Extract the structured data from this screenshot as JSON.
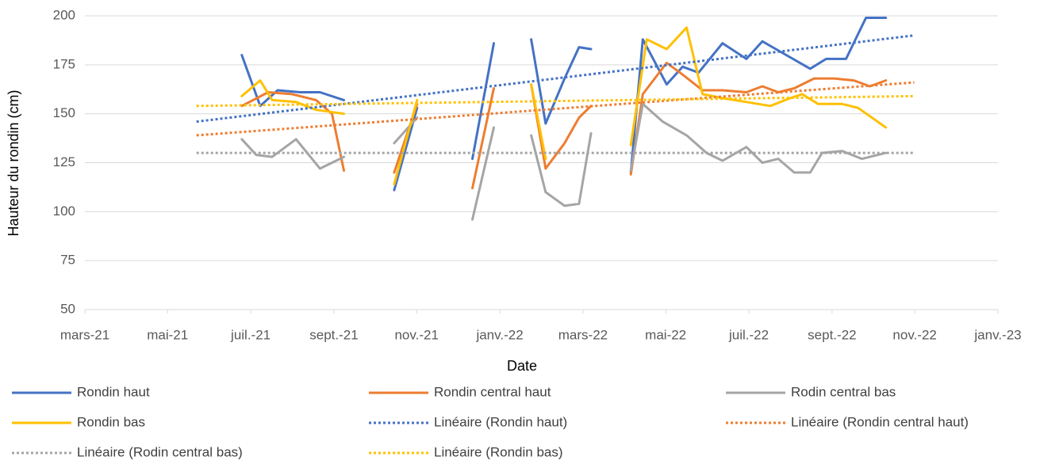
{
  "chart_data": {
    "type": "line",
    "x_label": "Date",
    "y_label": "Hauteur du rondin (cm)",
    "xlim": [
      2021.167,
      2023.0
    ],
    "xticks": [
      {
        "value": 2021.167,
        "label": "mars-21"
      },
      {
        "value": 2021.333,
        "label": "mai-21"
      },
      {
        "value": 2021.5,
        "label": "juil.-21"
      },
      {
        "value": 2021.667,
        "label": "sept.-21"
      },
      {
        "value": 2021.833,
        "label": "nov.-21"
      },
      {
        "value": 2022.0,
        "label": "janv.-22"
      },
      {
        "value": 2022.167,
        "label": "mars-22"
      },
      {
        "value": 2022.333,
        "label": "mai-22"
      },
      {
        "value": 2022.5,
        "label": "juil.-22"
      },
      {
        "value": 2022.667,
        "label": "sept.-22"
      },
      {
        "value": 2022.833,
        "label": "nov.-22"
      },
      {
        "value": 2023.0,
        "label": "janv.-23"
      }
    ],
    "ylim": [
      50,
      200
    ],
    "yticks": [
      50,
      75,
      100,
      125,
      150,
      175,
      200
    ],
    "grid": true,
    "legend": "bottom",
    "series": [
      {
        "name": "Rondin haut",
        "color": "#4472c4",
        "style": "solid",
        "x": [
          2021.482,
          2021.519,
          2021.554,
          2021.599,
          2021.639,
          2021.687,
          null,
          2021.788,
          2021.834,
          null,
          2021.945,
          2021.988,
          null,
          2022.063,
          2022.092,
          2022.13,
          2022.159,
          2022.183,
          null,
          2022.263,
          2022.287,
          2022.335,
          2022.367,
          2022.399,
          2022.447,
          2022.495,
          2022.527,
          2022.575,
          2022.623,
          2022.655,
          2022.695,
          2022.735,
          2022.775
        ],
        "values": [
          180,
          154,
          162,
          161,
          161,
          157,
          null,
          111,
          153,
          null,
          127,
          186,
          null,
          188,
          145,
          168,
          184,
          183,
          null,
          120,
          188,
          165,
          174,
          171,
          186,
          178,
          187,
          180,
          173,
          178,
          178,
          199,
          199
        ]
      },
      {
        "name": "Rondin central haut",
        "color": "#ed7d31",
        "style": "solid",
        "x": [
          2021.482,
          2021.535,
          2021.583,
          2021.631,
          2021.663,
          2021.687,
          null,
          2021.788,
          2021.834,
          null,
          2021.945,
          2021.988,
          null,
          2022.063,
          2022.092,
          2022.13,
          2022.159,
          2022.183,
          null,
          2022.263,
          2022.287,
          2022.335,
          2022.367,
          2022.407,
          2022.447,
          2022.495,
          2022.527,
          2022.559,
          2022.591,
          2022.631,
          2022.671,
          2022.711,
          2022.743,
          2022.775
        ],
        "values": [
          154,
          161,
          160,
          157,
          150,
          121,
          null,
          120,
          155,
          null,
          112,
          163,
          null,
          165,
          122,
          135,
          148,
          154,
          null,
          119,
          160,
          176,
          170,
          162,
          162,
          161,
          164,
          161,
          163,
          168,
          168,
          167,
          164,
          167
        ]
      },
      {
        "name": "Rodin central bas",
        "color": "#a5a5a5",
        "style": "solid",
        "x": [
          2021.482,
          2021.511,
          2021.543,
          2021.591,
          2021.639,
          2021.687,
          null,
          2021.788,
          2021.834,
          null,
          2021.945,
          2021.988,
          null,
          2022.063,
          2022.092,
          2022.13,
          2022.159,
          2022.183,
          null,
          2022.263,
          2022.287,
          2022.327,
          2022.375,
          2022.415,
          2022.447,
          2022.495,
          2022.527,
          2022.559,
          2022.591,
          2022.623,
          2022.647,
          2022.687,
          2022.727,
          2022.775
        ],
        "values": [
          137,
          129,
          128,
          137,
          122,
          128,
          null,
          135,
          148,
          null,
          96,
          143,
          null,
          139,
          110,
          103,
          104,
          140,
          null,
          121,
          155,
          146,
          139,
          130,
          126,
          133,
          125,
          127,
          120,
          120,
          130,
          131,
          127,
          130
        ]
      },
      {
        "name": "Rondin bas",
        "color": "#ffc000",
        "style": "solid",
        "x": [
          2021.482,
          2021.519,
          2021.543,
          2021.591,
          2021.631,
          2021.687,
          null,
          2021.788,
          2021.834,
          null,
          2022.063,
          2022.092,
          null,
          2022.263,
          2022.295,
          2022.335,
          2022.375,
          2022.407,
          2022.447,
          2022.495,
          2022.543,
          2022.583,
          2022.607,
          2022.639,
          2022.687,
          2022.719,
          2022.775
        ],
        "values": [
          159,
          167,
          157,
          156,
          152,
          150,
          null,
          114,
          157,
          null,
          165,
          127,
          null,
          134,
          188,
          183,
          194,
          160,
          158,
          156,
          154,
          158,
          160,
          155,
          155,
          153,
          143
        ]
      },
      {
        "name": "Linéaire (Rondin haut)",
        "color": "#4472c4",
        "style": "dotted",
        "x": [
          2021.391,
          2022.832
        ],
        "values": [
          146,
          190
        ]
      },
      {
        "name": "Linéaire (Rondin central haut)",
        "color": "#ed7d31",
        "style": "dotted",
        "x": [
          2021.391,
          2022.832
        ],
        "values": [
          139,
          166
        ]
      },
      {
        "name": "Linéaire (Rodin central bas)",
        "color": "#a5a5a5",
        "style": "dotted",
        "x": [
          2021.391,
          2022.832
        ],
        "values": [
          130,
          130
        ]
      },
      {
        "name": "Linéaire (Rondin bas)",
        "color": "#ffc000",
        "style": "dotted",
        "x": [
          2021.391,
          2022.832
        ],
        "values": [
          154,
          159
        ]
      }
    ]
  }
}
